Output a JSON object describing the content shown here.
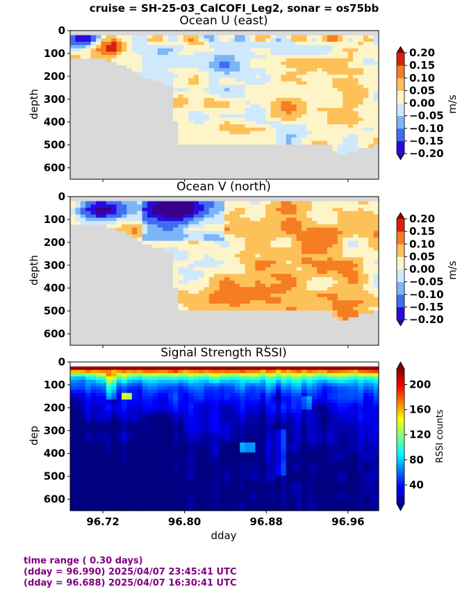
{
  "figure": {
    "suptitle": "cruise = SH-25-03_CalCOFI_Leg2,  sonar = os75bb"
  },
  "chart_data": [
    {
      "type": "heatmap",
      "title": "Ocean U (east)",
      "xlabel": "",
      "ylabel": "depth",
      "xlim": [
        96.688,
        96.99
      ],
      "ylim": [
        650,
        0
      ],
      "xticks": [
        96.72,
        96.8,
        96.88,
        96.96
      ],
      "yticks": [
        0,
        100,
        200,
        300,
        400,
        500,
        600
      ],
      "ytick_labels": [
        "0",
        "100",
        "200",
        "300",
        "400",
        "500",
        "600"
      ],
      "colorbar": {
        "label": "m/s",
        "ticks": [
          "0.20",
          "0.15",
          "0.10",
          "0.05",
          "0.00",
          "−0.05",
          "−0.10",
          "−0.15",
          "−0.20"
        ],
        "range": [
          -0.2,
          0.2
        ],
        "colormap": "jet-discrete",
        "extend": "both"
      },
      "bottom_depth": {
        "x": [
          96.688,
          96.7,
          96.72,
          96.74,
          96.76,
          96.79,
          96.792,
          96.83,
          96.88,
          96.93,
          96.945,
          96.95,
          96.97,
          96.99
        ],
        "depth": [
          115,
          115,
          120,
          150,
          200,
          245,
          495,
          495,
          495,
          495,
          500,
          545,
          515,
          500
        ]
      },
      "features": [
        {
          "x": 96.725,
          "depth": 70,
          "value": 0.2
        },
        {
          "x": 96.7,
          "depth": 30,
          "value": -0.2
        },
        {
          "x": 96.84,
          "depth": 150,
          "value": -0.12
        },
        {
          "x": 96.9,
          "depth": 330,
          "value": 0.12
        }
      ]
    },
    {
      "type": "heatmap",
      "title": "Ocean V (north)",
      "xlabel": "",
      "ylabel": "depth",
      "xlim": [
        96.688,
        96.99
      ],
      "ylim": [
        650,
        0
      ],
      "xticks": [
        96.72,
        96.8,
        96.88,
        96.96
      ],
      "yticks": [
        0,
        100,
        200,
        300,
        400,
        500,
        600
      ],
      "ytick_labels": [
        "0",
        "100",
        "200",
        "300",
        "400",
        "500",
        "600"
      ],
      "colorbar": {
        "label": "m/s",
        "ticks": [
          "0.20",
          "0.15",
          "0.10",
          "0.05",
          "0.00",
          "−0.05",
          "−0.10",
          "−0.15",
          "−0.20"
        ],
        "range": [
          -0.2,
          0.2
        ],
        "colormap": "jet-discrete",
        "extend": "both"
      },
      "bottom_depth": {
        "x": [
          96.688,
          96.7,
          96.72,
          96.74,
          96.76,
          96.79,
          96.792,
          96.83,
          96.88,
          96.93,
          96.945,
          96.95,
          96.97,
          96.99
        ],
        "depth": [
          115,
          115,
          120,
          150,
          200,
          245,
          495,
          495,
          495,
          495,
          500,
          545,
          515,
          500
        ]
      },
      "features": [
        {
          "x": 96.72,
          "depth": 60,
          "value": -0.22
        },
        {
          "x": 96.79,
          "depth": 50,
          "value": -0.22
        },
        {
          "x": 96.93,
          "depth": 180,
          "value": 0.15
        }
      ]
    },
    {
      "type": "heatmap",
      "title": "Signal Strength RSSI)",
      "xlabel": "dday",
      "ylabel": "dep",
      "xlim": [
        96.688,
        96.99
      ],
      "ylim": [
        650,
        0
      ],
      "xticks": [
        96.72,
        96.8,
        96.88,
        96.96
      ],
      "xtick_labels": [
        "96.72",
        "96.80",
        "96.88",
        "96.96"
      ],
      "yticks": [
        0,
        100,
        200,
        300,
        400,
        500,
        600
      ],
      "ytick_labels": [
        "0",
        "100",
        "200",
        "300",
        "400",
        "500",
        "600"
      ],
      "colorbar": {
        "label": "RSSI counts",
        "ticks": [
          "200",
          "160",
          "120",
          "80",
          "40"
        ],
        "tick_values": [
          200,
          160,
          120,
          80,
          40
        ],
        "range": [
          10,
          225
        ],
        "colormap": "jet",
        "extend": "both"
      }
    }
  ],
  "footer": {
    "line1": "time range ( 0.30 days)",
    "line2": "(dday = 96.990) 2025/04/07 23:45:41 UTC",
    "line3": "(dday = 96.688) 2025/04/07 16:30:41 UTC"
  }
}
